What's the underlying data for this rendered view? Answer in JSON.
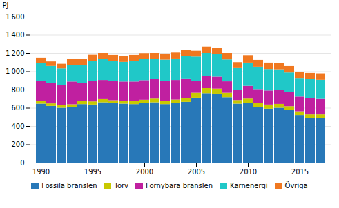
{
  "chart_data": {
    "type": "bar",
    "stacked": true,
    "categories": [
      1990,
      1991,
      1992,
      1993,
      1994,
      1995,
      1996,
      1997,
      1998,
      1999,
      2000,
      2001,
      2002,
      2003,
      2004,
      2005,
      2006,
      2007,
      2008,
      2009,
      2010,
      2011,
      2012,
      2013,
      2014,
      2015,
      2016,
      2017
    ],
    "xticks": [
      1990,
      1995,
      2000,
      2005,
      2010,
      2015
    ],
    "ylabel": "PJ",
    "ylim": [
      0,
      1600
    ],
    "yticks": [
      0,
      200,
      400,
      600,
      800,
      {
        "value": 1000,
        "label": "1 000"
      },
      {
        "value": 1200,
        "label": "1 200"
      },
      {
        "value": 1400,
        "label": "1 400"
      },
      {
        "value": 1600,
        "label": "1 600"
      }
    ],
    "grid": true,
    "legend": "bottom",
    "series": [
      {
        "name": "Fossila bränslen",
        "color": "#2878b8",
        "values": [
          645,
          620,
          600,
          610,
          640,
          635,
          660,
          650,
          645,
          640,
          650,
          660,
          640,
          650,
          665,
          710,
          760,
          755,
          715,
          645,
          655,
          610,
          590,
          600,
          575,
          520,
          485,
          485
        ]
      },
      {
        "name": "Torv",
        "color": "#c8c800",
        "values": [
          28,
          28,
          27,
          28,
          35,
          35,
          35,
          33,
          33,
          33,
          38,
          40,
          38,
          40,
          42,
          55,
          55,
          55,
          50,
          40,
          45,
          45,
          45,
          42,
          42,
          42,
          42,
          42
        ]
      },
      {
        "name": "Förnybara bränslen",
        "color": "#c020a0",
        "values": [
          225,
          225,
          225,
          250,
          200,
          225,
          210,
          210,
          210,
          215,
          215,
          220,
          215,
          215,
          215,
          130,
          130,
          130,
          125,
          115,
          140,
          150,
          155,
          155,
          155,
          160,
          175,
          170
        ]
      },
      {
        "name": "Kärnenergi",
        "color": "#20c8c8",
        "values": [
          195,
          185,
          180,
          180,
          195,
          220,
          230,
          220,
          215,
          225,
          230,
          215,
          235,
          235,
          245,
          265,
          255,
          245,
          240,
          235,
          255,
          245,
          235,
          225,
          215,
          205,
          215,
          210
        ]
      },
      {
        "name": "Övriga",
        "color": "#f07820",
        "values": [
          55,
          50,
          50,
          65,
          65,
          65,
          65,
          65,
          65,
          65,
          65,
          65,
          65,
          65,
          65,
          65,
          70,
          75,
          70,
          65,
          80,
          75,
          70,
          70,
          70,
          65,
          65,
          70
        ]
      }
    ]
  }
}
